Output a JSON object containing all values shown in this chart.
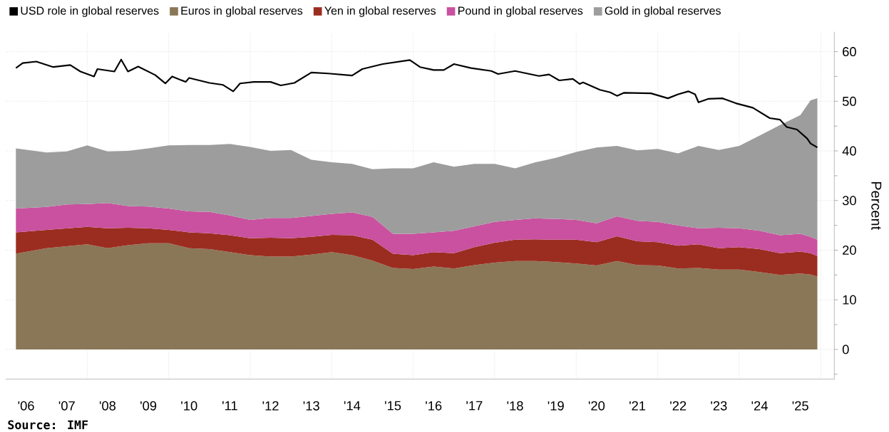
{
  "chart_data": {
    "type": "area",
    "stacked": true,
    "ylabel": "Percent",
    "annotations": [
      "Source: IMF"
    ],
    "x": [
      "2006-04",
      "2007-01",
      "2007-07",
      "2008-01",
      "2008-07",
      "2009-01",
      "2009-07",
      "2010-01",
      "2010-07",
      "2011-01",
      "2011-07",
      "2012-01",
      "2012-07",
      "2013-01",
      "2013-07",
      "2014-01",
      "2014-07",
      "2015-01",
      "2015-07",
      "2016-01",
      "2016-07",
      "2017-01",
      "2017-07",
      "2018-01",
      "2018-07",
      "2019-01",
      "2019-07",
      "2020-01",
      "2020-07",
      "2021-01",
      "2021-07",
      "2022-01",
      "2022-07",
      "2023-01",
      "2023-07",
      "2024-01",
      "2024-07",
      "2025-01",
      "2025-07",
      "2025-10",
      "2025-12"
    ],
    "series": [
      {
        "name": "USD role in global reserves",
        "type": "line",
        "color": "#000000",
        "x": [
          "2006-04",
          "2006-06",
          "2006-10",
          "2007-03",
          "2007-08",
          "2007-11",
          "2008-03",
          "2008-04",
          "2008-09",
          "2008-11",
          "2009-01",
          "2009-04",
          "2009-09",
          "2009-12",
          "2010-02",
          "2010-06",
          "2010-07",
          "2011-01",
          "2011-05",
          "2011-08",
          "2011-10",
          "2012-02",
          "2012-07",
          "2012-10",
          "2013-02",
          "2013-07",
          "2013-12",
          "2014-07",
          "2014-10",
          "2015-04",
          "2015-12",
          "2016-03",
          "2016-07",
          "2016-10",
          "2017-01",
          "2017-06",
          "2017-12",
          "2018-02",
          "2018-07",
          "2019-02",
          "2019-05",
          "2019-08",
          "2019-12",
          "2020-02",
          "2020-03",
          "2020-08",
          "2020-11",
          "2021-01",
          "2021-03",
          "2021-11",
          "2022-04",
          "2022-07",
          "2022-10",
          "2022-12",
          "2023-01",
          "2023-04",
          "2023-08",
          "2023-12",
          "2024-05",
          "2024-10",
          "2025-01",
          "2025-03",
          "2025-06",
          "2025-09",
          "2025-10",
          "2025-12"
        ],
        "values": [
          56.7,
          57.7,
          58.0,
          56.9,
          57.3,
          56.0,
          55.0,
          56.5,
          56.0,
          58.4,
          56.0,
          57.0,
          55.3,
          53.6,
          55.0,
          53.9,
          54.7,
          53.7,
          53.3,
          52.0,
          53.6,
          53.9,
          53.9,
          53.2,
          53.7,
          55.8,
          55.6,
          55.2,
          56.5,
          57.5,
          58.3,
          56.9,
          56.3,
          56.3,
          57.5,
          56.7,
          56.1,
          55.5,
          56.1,
          55.1,
          55.4,
          54.2,
          54.5,
          53.5,
          53.8,
          52.3,
          51.8,
          51.1,
          51.7,
          51.6,
          50.6,
          51.4,
          52.0,
          51.4,
          49.8,
          50.5,
          50.6,
          49.6,
          48.7,
          46.6,
          46.3,
          44.8,
          44.3,
          42.5,
          41.5,
          40.7
        ]
      },
      {
        "name": "Euros in global reserves",
        "color": "#8a7757",
        "values": [
          19.3,
          20.4,
          20.8,
          21.2,
          20.4,
          21.0,
          21.4,
          21.4,
          20.4,
          20.2,
          19.6,
          19.0,
          18.7,
          18.7,
          19.1,
          19.6,
          19.0,
          17.9,
          16.4,
          16.2,
          16.7,
          16.3,
          17.0,
          17.5,
          17.8,
          17.8,
          17.6,
          17.3,
          16.9,
          17.8,
          17.0,
          16.9,
          16.3,
          16.4,
          16.1,
          16.1,
          15.6,
          15.0,
          15.3,
          15.1,
          14.7
        ]
      },
      {
        "name": "Yen in global reserves",
        "color": "#9b2d20",
        "values": [
          4.3,
          3.7,
          3.6,
          3.5,
          4.0,
          3.5,
          3.0,
          2.7,
          3.2,
          3.2,
          3.4,
          3.4,
          3.8,
          3.7,
          3.6,
          3.5,
          4.0,
          4.2,
          2.9,
          2.8,
          2.9,
          3.1,
          3.6,
          4.0,
          4.3,
          4.4,
          4.5,
          4.8,
          4.7,
          5.0,
          4.8,
          4.7,
          4.6,
          4.8,
          4.3,
          4.5,
          4.6,
          4.4,
          4.4,
          4.3,
          4.1
        ]
      },
      {
        "name": "Pound in global reserves",
        "color": "#c9519f",
        "values": [
          4.8,
          4.6,
          4.8,
          4.6,
          5.1,
          4.4,
          4.4,
          4.3,
          4.2,
          4.3,
          4.0,
          3.7,
          4.0,
          4.1,
          4.2,
          4.2,
          4.6,
          4.6,
          4.0,
          4.3,
          4.0,
          4.5,
          4.2,
          4.2,
          4.0,
          4.2,
          4.2,
          4.0,
          3.8,
          4.0,
          4.1,
          4.1,
          4.1,
          3.2,
          4.1,
          3.8,
          3.7,
          3.6,
          3.6,
          3.3,
          3.3
        ]
      },
      {
        "name": "Gold in global reserves",
        "color": "#9d9d9d",
        "values": [
          12.1,
          11.0,
          10.7,
          11.8,
          10.4,
          11.1,
          11.7,
          12.7,
          13.4,
          13.5,
          14.4,
          14.7,
          13.5,
          13.7,
          11.3,
          10.4,
          9.8,
          9.6,
          13.2,
          13.2,
          14.1,
          12.9,
          12.6,
          11.7,
          10.4,
          11.3,
          12.3,
          13.7,
          15.3,
          14.2,
          14.2,
          14.7,
          14.5,
          16.6,
          15.7,
          16.6,
          19.2,
          22.2,
          23.9,
          27.5,
          28.5
        ]
      }
    ],
    "xlim": [
      "2006-01",
      "2026-05"
    ],
    "ylim": [
      -6,
      64
    ],
    "xticks": [
      {
        "value": "2006-07",
        "label": "'06"
      },
      {
        "value": "2007-07",
        "label": "'07"
      },
      {
        "value": "2008-07",
        "label": "'08"
      },
      {
        "value": "2009-07",
        "label": "'09"
      },
      {
        "value": "2010-07",
        "label": "'10"
      },
      {
        "value": "2011-07",
        "label": "'11"
      },
      {
        "value": "2012-07",
        "label": "'12"
      },
      {
        "value": "2013-07",
        "label": "'13"
      },
      {
        "value": "2014-07",
        "label": "'14"
      },
      {
        "value": "2015-07",
        "label": "'15"
      },
      {
        "value": "2016-07",
        "label": "'16"
      },
      {
        "value": "2017-07",
        "label": "'17"
      },
      {
        "value": "2018-07",
        "label": "'18"
      },
      {
        "value": "2019-07",
        "label": "'19"
      },
      {
        "value": "2020-07",
        "label": "'20"
      },
      {
        "value": "2021-07",
        "label": "'21"
      },
      {
        "value": "2022-07",
        "label": "'22"
      },
      {
        "value": "2023-07",
        "label": "'23"
      },
      {
        "value": "2024-07",
        "label": "'24"
      },
      {
        "value": "2025-07",
        "label": "'25"
      },
      {
        "value": "2008-01",
        "label": null
      },
      {
        "value": "2010-01",
        "label": null
      },
      {
        "value": "2012-01",
        "label": null
      },
      {
        "value": "2014-01",
        "label": null
      },
      {
        "value": "2016-01",
        "label": null
      },
      {
        "value": "2018-01",
        "label": null
      },
      {
        "value": "2020-01",
        "label": null
      },
      {
        "value": "2022-01",
        "label": null
      },
      {
        "value": "2024-01",
        "label": null
      },
      {
        "value": "2026-01",
        "label": null
      }
    ],
    "yticks": [
      {
        "value": -5,
        "label": null
      },
      0,
      {
        "value": 5,
        "label": null
      },
      10,
      {
        "value": 15,
        "label": null
      },
      20,
      {
        "value": 25,
        "label": null
      },
      30,
      {
        "value": 35,
        "label": null
      },
      40,
      {
        "value": 45,
        "label": null
      },
      50,
      {
        "value": 55,
        "label": null
      },
      60
    ],
    "grid": true,
    "legend": "top"
  }
}
